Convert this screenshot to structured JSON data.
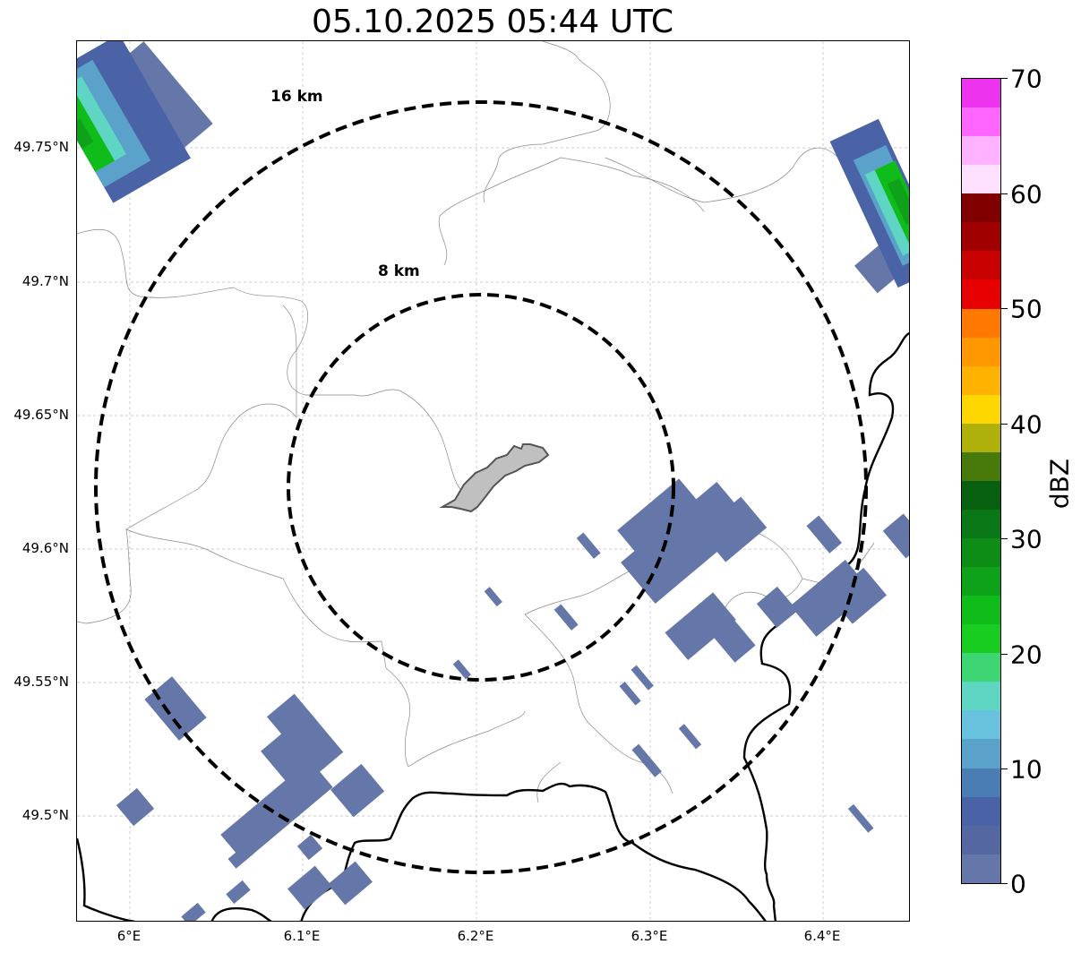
{
  "title": "05.10.2025 05:44 UTC",
  "map": {
    "lat_labels": [
      "49.75°N",
      "49.7°N",
      "49.65°N",
      "49.6°N",
      "49.55°N",
      "49.5°N"
    ],
    "lon_labels": [
      "6°E",
      "6.1°E",
      "6.2°E",
      "6.3°E",
      "6.4°E"
    ],
    "range_rings": [
      {
        "label": "8 km",
        "radius_km": 8
      },
      {
        "label": "16 km",
        "radius_km": 16
      }
    ],
    "extent": {
      "lon": [
        5.97,
        6.45
      ],
      "lat": [
        49.46,
        49.79
      ]
    },
    "radar_center": {
      "lon": 6.2,
      "lat": 49.623
    }
  },
  "colorbar": {
    "title": "dBZ",
    "tick_labels": [
      "70",
      "60",
      "50",
      "40",
      "30",
      "20",
      "10",
      "0"
    ],
    "range": [
      0,
      70
    ],
    "colors": [
      "#6477a8",
      "#5567a0",
      "#4a62a6",
      "#4b7db5",
      "#5ba2cb",
      "#69c2dd",
      "#5fd6c4",
      "#3dd672",
      "#18cc20",
      "#10bc19",
      "#0da21a",
      "#0d8c16",
      "#0a7816",
      "#066010",
      "#477a0a",
      "#b0b00a",
      "#ffd700",
      "#ffb300",
      "#ff9800",
      "#ff7800",
      "#e60000",
      "#c80000",
      "#a00000",
      "#800000",
      "#ffe0ff",
      "#ffb2ff",
      "#ff66ff",
      "#ee33ee"
    ]
  },
  "style": {
    "echo_color": "#6477a8",
    "ring_color": "#000000",
    "city_fill": "#c0c0c0"
  }
}
